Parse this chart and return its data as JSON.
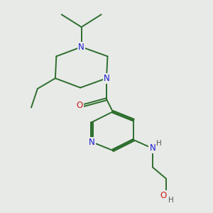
{
  "bg_color": "#e8eae8",
  "bond_color": "#2d6e2d",
  "N_color": "#1a1acc",
  "O_color": "#cc1a1a",
  "H_color": "#555555",
  "line_width": 1.4,
  "font_size": 8.5,
  "xlim": [
    0,
    10
  ],
  "ylim": [
    0,
    10
  ]
}
